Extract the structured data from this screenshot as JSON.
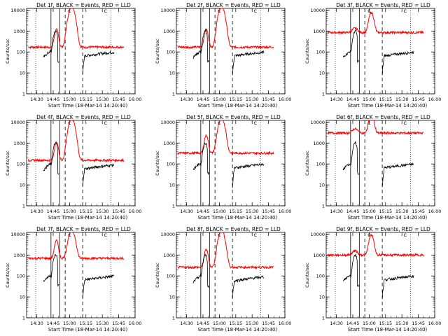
{
  "chart_data": {
    "type": "line",
    "shared": {
      "ylabel": "Counts/sec",
      "xlabel": "Start Time (18-Mar-14 14:20:40)",
      "xlim": [
        "14:20:40",
        "16:00:00"
      ],
      "x_ticks": [
        "14:30",
        "14:45",
        "15:00",
        "15:15",
        "15:30",
        "15:45",
        "16:00"
      ],
      "y_ticks": [
        "1",
        "10",
        "100",
        "1000",
        "10000"
      ],
      "y_scale": "log",
      "ylim": [
        1,
        12000
      ],
      "series_colors": {
        "events": "#000000",
        "lld": "#ff0000"
      },
      "markers": {
        "solid_lines": [
          "14:43",
          "14:51"
        ],
        "dashed_lines": [
          "14:56",
          "15:12"
        ],
        "dotted_lines": [
          "14:29",
          "15:38"
        ],
        "dotted_lines_right": [
          "15:38"
        ],
        "top_marker_label": "c"
      }
    },
    "panels": [
      {
        "title": "Det 1f, BLACK = Events, RED = LLD",
        "events_level": 90,
        "lld_level": 170,
        "flat": false
      },
      {
        "title": "Det 2f, BLACK = Events, RED = LLD",
        "events_level": 90,
        "lld_level": 170,
        "flat": false
      },
      {
        "title": "Det 3f, BLACK = Events, RED = LLD",
        "events_level": 90,
        "lld_level": 850,
        "flat": true
      },
      {
        "title": "Det 4f, BLACK = Events, RED = LLD",
        "events_level": 80,
        "lld_level": 150,
        "flat": false
      },
      {
        "title": "Det 5f, BLACK = Events, RED = LLD",
        "events_level": 90,
        "lld_level": 330,
        "flat": false
      },
      {
        "title": "Det 6f, BLACK = Events, RED = LLD",
        "events_level": 90,
        "lld_level": 3000,
        "flat": true
      },
      {
        "title": "Det 7f, BLACK = Events, RED = LLD",
        "events_level": 90,
        "lld_level": 700,
        "flat": false
      },
      {
        "title": "Det 8f, BLACK = Events, RED = LLD",
        "events_level": 80,
        "lld_level": 260,
        "flat": false
      },
      {
        "title": "Det 9f, BLACK = Events, RED = LLD",
        "events_level": 90,
        "lld_level": 1000,
        "flat": true
      }
    ]
  }
}
